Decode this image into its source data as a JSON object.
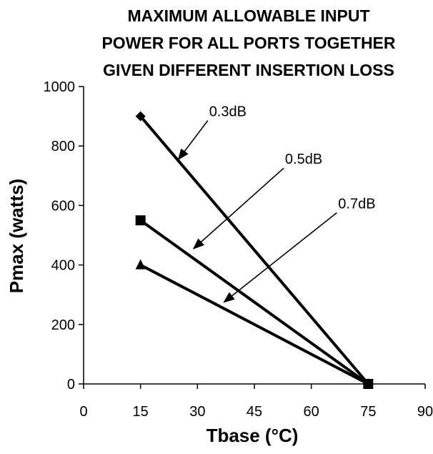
{
  "chart_data": {
    "type": "line",
    "title": [
      "MAXIMUM ALLOWABLE INPUT",
      "POWER FOR ALL PORTS TOGETHER",
      "GIVEN DIFFERENT INSERTION LOSS"
    ],
    "xlabel": "Tbase (°C)",
    "ylabel": "Pmax (watts)",
    "xlim": [
      0,
      90
    ],
    "ylim": [
      0,
      1000
    ],
    "xticks": [
      0,
      15,
      30,
      45,
      60,
      75,
      90
    ],
    "yticks": [
      0,
      200,
      400,
      600,
      800,
      1000
    ],
    "grid": false,
    "legend": "none",
    "series": [
      {
        "marker": "diamond",
        "x": [
          15,
          75
        ],
        "y": [
          900,
          0
        ],
        "color": "#000000"
      },
      {
        "marker": "square",
        "x": [
          15,
          75
        ],
        "y": [
          550,
          0
        ],
        "color": "#000000"
      },
      {
        "marker": "triangle",
        "x": [
          15,
          75
        ],
        "y": [
          400,
          0
        ],
        "color": "#000000"
      }
    ],
    "annotations": [
      {
        "text": "0.3dB",
        "series": 0,
        "text_at": [
          38,
          900
        ],
        "arrow_to": [
          25,
          755
        ]
      },
      {
        "text": "0.5dB",
        "series": 1,
        "text_at": [
          58,
          740
        ],
        "arrow_to": [
          29,
          455
        ]
      },
      {
        "text": "0.7dB",
        "series": 2,
        "text_at": [
          72,
          590
        ],
        "arrow_to": [
          37,
          275
        ]
      }
    ]
  }
}
